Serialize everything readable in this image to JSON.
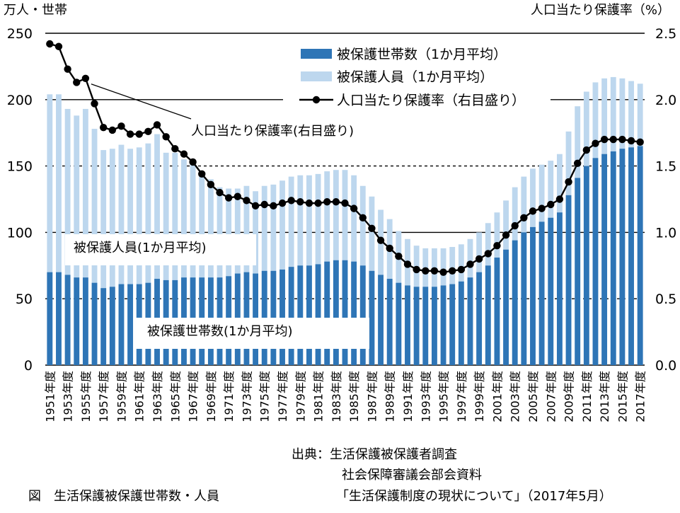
{
  "left_unit": "万人・世帯",
  "right_unit": "人口当たり保護率（%）",
  "source": {
    "line1": "出典：生活保護被保護者調査",
    "line2": "社会保障審議会部会資料",
    "line3": "「生活保護制度の現状について」（2017年5月）"
  },
  "figure_caption": "図　生活保護被保護世帯数・人員",
  "annotations": {
    "rate": "人口当たり保護率(右目盛り)",
    "persons": "被保護人員(1か月平均)",
    "households": "被保護世帯数(1か月平均)"
  },
  "chart_data": {
    "type": "bar",
    "categories": [
      "1951年度",
      "1952年度",
      "1953年度",
      "1954年度",
      "1955年度",
      "1956年度",
      "1957年度",
      "1958年度",
      "1959年度",
      "1960年度",
      "1961年度",
      "1962年度",
      "1963年度",
      "1964年度",
      "1965年度",
      "1966年度",
      "1967年度",
      "1968年度",
      "1969年度",
      "1970年度",
      "1971年度",
      "1972年度",
      "1973年度",
      "1974年度",
      "1975年度",
      "1976年度",
      "1977年度",
      "1978年度",
      "1979年度",
      "1980年度",
      "1981年度",
      "1982年度",
      "1983年度",
      "1984年度",
      "1985年度",
      "1986年度",
      "1987年度",
      "1988年度",
      "1989年度",
      "1990年度",
      "1991年度",
      "1992年度",
      "1993年度",
      "1994年度",
      "1995年度",
      "1996年度",
      "1997年度",
      "1998年度",
      "1999年度",
      "2000年度",
      "2001年度",
      "2002年度",
      "2003年度",
      "2004年度",
      "2005年度",
      "2006年度",
      "2007年度",
      "2008年度",
      "2009年度",
      "2010年度",
      "2011年度",
      "2012年度",
      "2013年度",
      "2014年度",
      "2015年度",
      "2016年度",
      "2017年度"
    ],
    "tick_labels": [
      "1951年度",
      "1953年度",
      "1955年度",
      "1957年度",
      "1959年度",
      "1961年度",
      "1963年度",
      "1965年度",
      "1967年度",
      "1969年度",
      "1971年度",
      "1973年度",
      "1975年度",
      "1977年度",
      "1979年度",
      "1981年度",
      "1983年度",
      "1985年度",
      "1987年度",
      "1989年度",
      "1991年度",
      "1993年度",
      "1995年度",
      "1997年度",
      "1999年度",
      "2001年度",
      "2003年度",
      "2005年度",
      "2007年度",
      "2009年度",
      "2011年度",
      "2013年度",
      "2015年度",
      "2017年度"
    ],
    "y_left_ticks": [
      "0",
      "50",
      "100",
      "150",
      "200",
      "250"
    ],
    "y_right_ticks": [
      "0.0",
      "0.5",
      "1.0",
      "1.5",
      "2.0",
      "2.5"
    ],
    "ylim_left": [
      0,
      250
    ],
    "ylim_right": [
      0,
      2.5
    ],
    "series": [
      {
        "name": "被保護世帯数（1か月平均）",
        "kind": "bar",
        "color": "#2e75b6",
        "values": [
          70,
          70,
          68,
          66,
          66,
          62,
          58,
          59,
          61,
          61,
          61,
          62,
          65,
          64,
          64,
          66,
          66,
          66,
          66,
          66,
          67,
          69,
          70,
          69,
          71,
          71,
          72,
          74,
          75,
          75,
          76,
          78,
          79,
          79,
          78,
          75,
          71,
          68,
          65,
          62,
          60,
          59,
          59,
          59,
          60,
          61,
          63,
          66,
          70,
          75,
          81,
          87,
          94,
          100,
          104,
          108,
          111,
          115,
          128,
          141,
          150,
          156,
          159,
          161,
          163,
          164,
          165
        ]
      },
      {
        "name": "被保護人員（1か月平均）",
        "kind": "bar",
        "color": "#bdd7ee",
        "values": [
          204,
          204,
          193,
          188,
          193,
          178,
          162,
          163,
          166,
          163,
          164,
          167,
          174,
          160,
          160,
          155,
          152,
          145,
          140,
          134,
          133,
          133,
          135,
          131,
          135,
          136,
          139,
          142,
          143,
          143,
          144,
          146,
          147,
          147,
          143,
          135,
          127,
          117,
          110,
          101,
          95,
          90,
          88,
          88,
          88,
          89,
          91,
          95,
          100,
          107,
          115,
          124,
          134,
          142,
          148,
          151,
          154,
          159,
          176,
          195,
          206,
          213,
          216,
          217,
          216,
          214,
          212
        ]
      },
      {
        "name": "人口当たり保護率（右目盛り）",
        "kind": "line",
        "color": "#000000",
        "values": [
          2.42,
          2.4,
          2.23,
          2.13,
          2.16,
          1.97,
          1.79,
          1.77,
          1.8,
          1.74,
          1.74,
          1.76,
          1.81,
          1.72,
          1.63,
          1.59,
          1.53,
          1.44,
          1.36,
          1.3,
          1.26,
          1.27,
          1.24,
          1.2,
          1.21,
          1.2,
          1.22,
          1.24,
          1.23,
          1.22,
          1.22,
          1.23,
          1.23,
          1.22,
          1.18,
          1.11,
          1.03,
          0.94,
          0.88,
          0.82,
          0.76,
          0.72,
          0.71,
          0.71,
          0.7,
          0.71,
          0.72,
          0.76,
          0.8,
          0.84,
          0.9,
          0.98,
          1.05,
          1.11,
          1.16,
          1.18,
          1.21,
          1.25,
          1.38,
          1.52,
          1.62,
          1.67,
          1.7,
          1.7,
          1.7,
          1.69,
          1.68
        ]
      }
    ]
  }
}
